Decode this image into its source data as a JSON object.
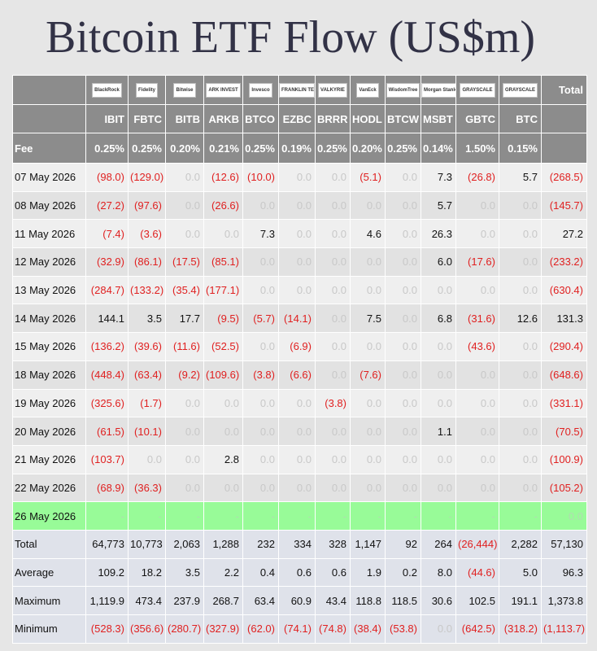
{
  "title": "Bitcoin ETF Flow (US$m)",
  "table": {
    "logos": [
      "BlackRock",
      "Fidelity",
      "Bitwise",
      "ARK INVEST",
      "Invesco",
      "FRANKLIN TEMPLETON",
      "VALKYRIE",
      "VanEck",
      "WisdomTree",
      "Morgan Stanley",
      "GRAYSCALE",
      "GRAYSCALE"
    ],
    "total_header": "Total",
    "tickers": [
      "IBIT",
      "FBTC",
      "BITB",
      "ARKB",
      "BTCO",
      "EZBC",
      "BRRR",
      "HODL",
      "BTCW",
      "MSBT",
      "GBTC",
      "BTC"
    ],
    "fee_label": "Fee",
    "fees": [
      "0.25%",
      "0.25%",
      "0.20%",
      "0.21%",
      "0.25%",
      "0.19%",
      "0.25%",
      "0.20%",
      "0.25%",
      "0.14%",
      "1.50%",
      "0.15%"
    ],
    "rows": [
      [
        "07 May 2026",
        "(98.0)",
        "(129.0)",
        "0.0",
        "(12.6)",
        "(10.0)",
        "0.0",
        "0.0",
        "(5.1)",
        "0.0",
        "7.3",
        "(26.8)",
        "5.7",
        "(268.5)"
      ],
      [
        "08 May 2026",
        "(27.2)",
        "(97.6)",
        "0.0",
        "(26.6)",
        "0.0",
        "0.0",
        "0.0",
        "0.0",
        "0.0",
        "5.7",
        "0.0",
        "0.0",
        "(145.7)"
      ],
      [
        "11 May 2026",
        "(7.4)",
        "(3.6)",
        "0.0",
        "0.0",
        "7.3",
        "0.0",
        "0.0",
        "4.6",
        "0.0",
        "26.3",
        "0.0",
        "0.0",
        "27.2"
      ],
      [
        "12 May 2026",
        "(32.9)",
        "(86.1)",
        "(17.5)",
        "(85.1)",
        "0.0",
        "0.0",
        "0.0",
        "0.0",
        "0.0",
        "6.0",
        "(17.6)",
        "0.0",
        "(233.2)"
      ],
      [
        "13 May 2026",
        "(284.7)",
        "(133.2)",
        "(35.4)",
        "(177.1)",
        "0.0",
        "0.0",
        "0.0",
        "0.0",
        "0.0",
        "0.0",
        "0.0",
        "0.0",
        "(630.4)"
      ],
      [
        "14 May 2026",
        "144.1",
        "3.5",
        "17.7",
        "(9.5)",
        "(5.7)",
        "(14.1)",
        "0.0",
        "7.5",
        "0.0",
        "6.8",
        "(31.6)",
        "12.6",
        "131.3"
      ],
      [
        "15 May 2026",
        "(136.2)",
        "(39.6)",
        "(11.6)",
        "(52.5)",
        "0.0",
        "(6.9)",
        "0.0",
        "0.0",
        "0.0",
        "0.0",
        "(43.6)",
        "0.0",
        "(290.4)"
      ],
      [
        "18 May 2026",
        "(448.4)",
        "(63.4)",
        "(9.2)",
        "(109.6)",
        "(3.8)",
        "(6.6)",
        "0.0",
        "(7.6)",
        "0.0",
        "0.0",
        "0.0",
        "0.0",
        "(648.6)"
      ],
      [
        "19 May 2026",
        "(325.6)",
        "(1.7)",
        "0.0",
        "0.0",
        "0.0",
        "0.0",
        "(3.8)",
        "0.0",
        "0.0",
        "0.0",
        "0.0",
        "0.0",
        "(331.1)"
      ],
      [
        "20 May 2026",
        "(61.5)",
        "(10.1)",
        "0.0",
        "0.0",
        "0.0",
        "0.0",
        "0.0",
        "0.0",
        "0.0",
        "1.1",
        "0.0",
        "0.0",
        "(70.5)"
      ],
      [
        "21 May 2026",
        "(103.7)",
        "0.0",
        "0.0",
        "2.8",
        "0.0",
        "0.0",
        "0.0",
        "0.0",
        "0.0",
        "0.0",
        "0.0",
        "0.0",
        "(100.9)"
      ],
      [
        "22 May 2026",
        "(68.9)",
        "(36.3)",
        "0.0",
        "0.0",
        "0.0",
        "0.0",
        "0.0",
        "0.0",
        "0.0",
        "0.0",
        "0.0",
        "0.0",
        "(105.2)"
      ],
      [
        "26 May 2026",
        "-",
        "-",
        "-",
        "-",
        "-",
        "-",
        "-",
        "-",
        "-",
        "-",
        "-",
        "-",
        "0.0"
      ],
      [
        "Total",
        "64,773",
        "10,773",
        "2,063",
        "1,288",
        "232",
        "334",
        "328",
        "1,147",
        "92",
        "264",
        "(26,444)",
        "2,282",
        "57,130"
      ],
      [
        "Average",
        "109.2",
        "18.2",
        "3.5",
        "2.2",
        "0.4",
        "0.6",
        "0.6",
        "1.9",
        "0.2",
        "8.0",
        "(44.6)",
        "5.0",
        "96.3"
      ],
      [
        "Maximum",
        "1,119.9",
        "473.4",
        "237.9",
        "268.7",
        "63.4",
        "60.9",
        "43.4",
        "118.8",
        "118.5",
        "30.6",
        "102.5",
        "191.1",
        "1,373.8"
      ],
      [
        "Minimum",
        "(528.3)",
        "(356.6)",
        "(280.7)",
        "(327.9)",
        "(62.0)",
        "(74.1)",
        "(74.8)",
        "(38.4)",
        "(53.8)",
        "0.0",
        "(642.5)",
        "(318.2)",
        "(1,113.7)"
      ]
    ]
  }
}
